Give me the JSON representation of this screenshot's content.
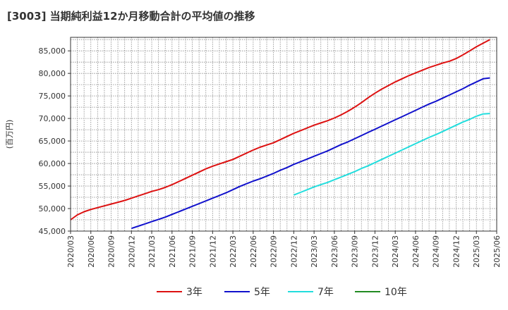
{
  "chart_data": {
    "type": "line",
    "title": "[3003]  当期純利益12か月移動合計の平均値の推移",
    "ylabel": "(百万円)",
    "xlabel": "",
    "ylim": [
      45000,
      88000
    ],
    "xlim": [
      "2020/03",
      "2025/06"
    ],
    "yticks": [
      45000,
      50000,
      55000,
      60000,
      65000,
      70000,
      75000,
      80000,
      85000
    ],
    "ytick_labels": [
      "45,000",
      "50,000",
      "55,000",
      "60,000",
      "65,000",
      "70,000",
      "75,000",
      "80,000",
      "85,000"
    ],
    "xtick_labels": [
      "2020/03",
      "2020/06",
      "2020/09",
      "2020/12",
      "2021/03",
      "2021/06",
      "2021/09",
      "2021/12",
      "2022/03",
      "2022/06",
      "2022/09",
      "2022/12",
      "2023/03",
      "2023/06",
      "2023/09",
      "2023/12",
      "2024/03",
      "2024/06",
      "2024/09",
      "2024/12",
      "2025/03",
      "2025/06"
    ],
    "grid": true,
    "legend_position": "bottom",
    "series": [
      {
        "name": "3年",
        "color": "#dd1111",
        "points": [
          [
            "2020/03",
            47500
          ],
          [
            "2020/04",
            48600
          ],
          [
            "2020/05",
            49300
          ],
          [
            "2020/06",
            49800
          ],
          [
            "2020/07",
            50200
          ],
          [
            "2020/08",
            50600
          ],
          [
            "2020/09",
            51000
          ],
          [
            "2020/10",
            51400
          ],
          [
            "2020/11",
            51800
          ],
          [
            "2020/12",
            52300
          ],
          [
            "2021/01",
            52800
          ],
          [
            "2021/02",
            53300
          ],
          [
            "2021/03",
            53800
          ],
          [
            "2021/04",
            54200
          ],
          [
            "2021/05",
            54700
          ],
          [
            "2021/06",
            55300
          ],
          [
            "2021/07",
            56000
          ],
          [
            "2021/08",
            56700
          ],
          [
            "2021/09",
            57400
          ],
          [
            "2021/10",
            58100
          ],
          [
            "2021/11",
            58800
          ],
          [
            "2021/12",
            59400
          ],
          [
            "2022/01",
            59900
          ],
          [
            "2022/02",
            60400
          ],
          [
            "2022/03",
            60900
          ],
          [
            "2022/04",
            61600
          ],
          [
            "2022/05",
            62300
          ],
          [
            "2022/06",
            63000
          ],
          [
            "2022/07",
            63600
          ],
          [
            "2022/08",
            64100
          ],
          [
            "2022/09",
            64600
          ],
          [
            "2022/10",
            65300
          ],
          [
            "2022/11",
            66000
          ],
          [
            "2022/12",
            66700
          ],
          [
            "2023/01",
            67300
          ],
          [
            "2023/02",
            67900
          ],
          [
            "2023/03",
            68500
          ],
          [
            "2023/04",
            69000
          ],
          [
            "2023/05",
            69500
          ],
          [
            "2023/06",
            70100
          ],
          [
            "2023/07",
            70800
          ],
          [
            "2023/08",
            71600
          ],
          [
            "2023/09",
            72500
          ],
          [
            "2023/10",
            73500
          ],
          [
            "2023/11",
            74600
          ],
          [
            "2023/12",
            75600
          ],
          [
            "2024/01",
            76500
          ],
          [
            "2024/02",
            77300
          ],
          [
            "2024/03",
            78100
          ],
          [
            "2024/04",
            78800
          ],
          [
            "2024/05",
            79500
          ],
          [
            "2024/06",
            80100
          ],
          [
            "2024/07",
            80700
          ],
          [
            "2024/08",
            81300
          ],
          [
            "2024/09",
            81800
          ],
          [
            "2024/10",
            82300
          ],
          [
            "2024/11",
            82700
          ],
          [
            "2024/12",
            83300
          ],
          [
            "2025/01",
            84100
          ],
          [
            "2025/02",
            85000
          ],
          [
            "2025/03",
            85900
          ],
          [
            "2025/04",
            86700
          ],
          [
            "2025/05",
            87500
          ]
        ]
      },
      {
        "name": "5年",
        "color": "#1111cc",
        "points": [
          [
            "2020/12",
            45600
          ],
          [
            "2021/01",
            46100
          ],
          [
            "2021/02",
            46600
          ],
          [
            "2021/03",
            47100
          ],
          [
            "2021/04",
            47600
          ],
          [
            "2021/05",
            48100
          ],
          [
            "2021/06",
            48700
          ],
          [
            "2021/07",
            49300
          ],
          [
            "2021/08",
            49900
          ],
          [
            "2021/09",
            50500
          ],
          [
            "2021/10",
            51100
          ],
          [
            "2021/11",
            51700
          ],
          [
            "2021/12",
            52300
          ],
          [
            "2022/01",
            52900
          ],
          [
            "2022/02",
            53500
          ],
          [
            "2022/03",
            54200
          ],
          [
            "2022/04",
            54900
          ],
          [
            "2022/05",
            55500
          ],
          [
            "2022/06",
            56100
          ],
          [
            "2022/07",
            56600
          ],
          [
            "2022/08",
            57200
          ],
          [
            "2022/09",
            57800
          ],
          [
            "2022/10",
            58500
          ],
          [
            "2022/11",
            59100
          ],
          [
            "2022/12",
            59800
          ],
          [
            "2023/01",
            60400
          ],
          [
            "2023/02",
            61000
          ],
          [
            "2023/03",
            61600
          ],
          [
            "2023/04",
            62200
          ],
          [
            "2023/05",
            62800
          ],
          [
            "2023/06",
            63500
          ],
          [
            "2023/07",
            64200
          ],
          [
            "2023/08",
            64800
          ],
          [
            "2023/09",
            65500
          ],
          [
            "2023/10",
            66200
          ],
          [
            "2023/11",
            66900
          ],
          [
            "2023/12",
            67600
          ],
          [
            "2024/01",
            68300
          ],
          [
            "2024/02",
            69000
          ],
          [
            "2024/03",
            69700
          ],
          [
            "2024/04",
            70400
          ],
          [
            "2024/05",
            71100
          ],
          [
            "2024/06",
            71800
          ],
          [
            "2024/07",
            72500
          ],
          [
            "2024/08",
            73200
          ],
          [
            "2024/09",
            73800
          ],
          [
            "2024/10",
            74500
          ],
          [
            "2024/11",
            75200
          ],
          [
            "2024/12",
            75900
          ],
          [
            "2025/01",
            76600
          ],
          [
            "2025/02",
            77400
          ],
          [
            "2025/03",
            78100
          ],
          [
            "2025/04",
            78800
          ],
          [
            "2025/05",
            79000
          ]
        ]
      },
      {
        "name": "7年",
        "color": "#22dddd",
        "points": [
          [
            "2022/12",
            53000
          ],
          [
            "2023/01",
            53600
          ],
          [
            "2023/02",
            54200
          ],
          [
            "2023/03",
            54800
          ],
          [
            "2023/04",
            55300
          ],
          [
            "2023/05",
            55800
          ],
          [
            "2023/06",
            56400
          ],
          [
            "2023/07",
            57000
          ],
          [
            "2023/08",
            57600
          ],
          [
            "2023/09",
            58200
          ],
          [
            "2023/10",
            58900
          ],
          [
            "2023/11",
            59500
          ],
          [
            "2023/12",
            60200
          ],
          [
            "2024/01",
            60900
          ],
          [
            "2024/02",
            61600
          ],
          [
            "2024/03",
            62300
          ],
          [
            "2024/04",
            63000
          ],
          [
            "2024/05",
            63700
          ],
          [
            "2024/06",
            64400
          ],
          [
            "2024/07",
            65100
          ],
          [
            "2024/08",
            65800
          ],
          [
            "2024/09",
            66400
          ],
          [
            "2024/10",
            67100
          ],
          [
            "2024/11",
            67800
          ],
          [
            "2024/12",
            68500
          ],
          [
            "2025/01",
            69200
          ],
          [
            "2025/02",
            69800
          ],
          [
            "2025/03",
            70500
          ],
          [
            "2025/04",
            71000
          ],
          [
            "2025/05",
            71100
          ]
        ]
      },
      {
        "name": "10年",
        "color": "#228b22",
        "points": []
      }
    ]
  }
}
